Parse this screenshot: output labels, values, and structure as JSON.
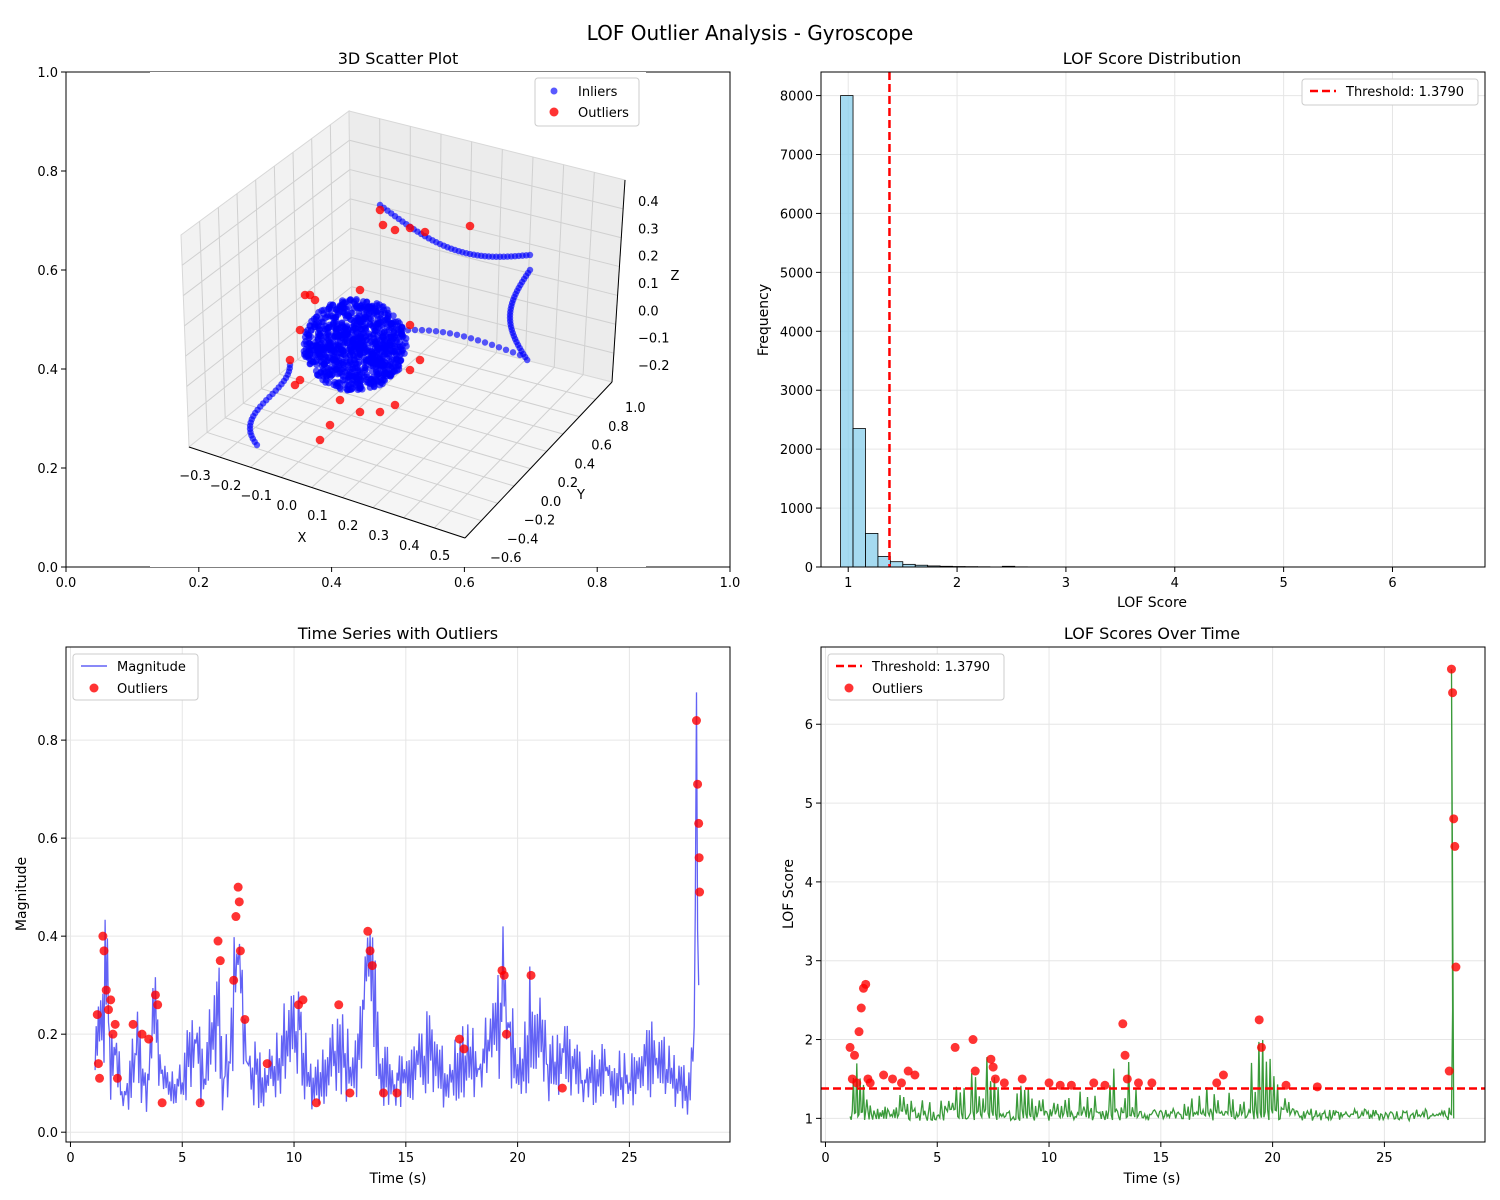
{
  "figure": {
    "suptitle": "LOF Outlier Analysis - Gyroscope"
  },
  "colors": {
    "inlier": "#0000ff",
    "outlier": "#ff0000",
    "threshold": "#ff0000",
    "hist_fill": "#87ceeb",
    "magnitude_line": "#6262f5",
    "lof_line": "#3a9a3a",
    "grid": "#e6e6e6"
  },
  "chart_data": [
    {
      "type": "scatter",
      "title": "3D Scatter Plot",
      "projection": "3d",
      "legend": [
        "Inliers",
        "Outliers"
      ],
      "legend_placement": "top-right",
      "xlabel": "X",
      "ylabel": "Y",
      "zlabel": "Z",
      "x_ticks": [
        "−0.3",
        "−0.2",
        "−0.1",
        "0.0",
        "0.1",
        "0.2",
        "0.3",
        "0.4",
        "0.5"
      ],
      "y_ticks": [
        "−0.6",
        "−0.4",
        "−0.2",
        "0.0",
        "0.2",
        "0.4",
        "0.6",
        "0.8",
        "1.0"
      ],
      "z_ticks": [
        "−0.2",
        "−0.1",
        "0.0",
        "0.1",
        "0.2",
        "0.3",
        "0.4"
      ],
      "frame_ticks_x": [
        "0.0",
        "0.2",
        "0.4",
        "0.6",
        "0.8",
        "1.0"
      ],
      "frame_ticks_y": [
        "0.0",
        "0.2",
        "0.4",
        "0.6",
        "0.8",
        "1.0"
      ],
      "grid": true
    },
    {
      "type": "bar",
      "title": "LOF Score Distribution",
      "xlabel": "LOF Score",
      "ylabel": "Frequency",
      "xlim": [
        0.75,
        6.85
      ],
      "ylim": [
        0,
        8400
      ],
      "x_ticks": [
        1,
        2,
        3,
        4,
        5,
        6
      ],
      "y_ticks": [
        0,
        1000,
        2000,
        3000,
        4000,
        5000,
        6000,
        7000,
        8000
      ],
      "bin_start": 0.93,
      "bin_width": 0.1143,
      "values": [
        8000,
        2350,
        570,
        180,
        90,
        45,
        30,
        18,
        12,
        8,
        6,
        4,
        0,
        12,
        3,
        2,
        1,
        1,
        1,
        0,
        0,
        0,
        0,
        0,
        0,
        0,
        0,
        0,
        0,
        0,
        0,
        0,
        0,
        0,
        0,
        0,
        0,
        0,
        0,
        0,
        0,
        0,
        0,
        0,
        0,
        0,
        0,
        0,
        0,
        1
      ],
      "threshold": 1.379,
      "legend": [
        "Threshold: 1.3790"
      ],
      "legend_placement": "top-right",
      "grid": true
    },
    {
      "type": "line",
      "title": "Time Series with Outliers",
      "xlabel": "Time (s)",
      "ylabel": "Magnitude",
      "xlim": [
        -0.2,
        29.5
      ],
      "ylim": [
        -0.02,
        0.99
      ],
      "x_ticks": [
        0,
        5,
        10,
        15,
        20,
        25
      ],
      "y_ticks": [
        0.0,
        0.2,
        0.4,
        0.6,
        0.8
      ],
      "legend": [
        "Magnitude",
        "Outliers"
      ],
      "legend_placement": "top-left",
      "series": [
        {
          "name": "Magnitude",
          "x": [
            1.1,
            1.3,
            1.5,
            1.6,
            1.8,
            2.0,
            2.3,
            2.6,
            3.0,
            3.4,
            3.8,
            4.0,
            4.5,
            5.0,
            5.5,
            6.0,
            6.6,
            6.8,
            7.2,
            7.5,
            7.8,
            8.2,
            8.8,
            9.5,
            10.2,
            10.8,
            11.5,
            12.0,
            12.8,
            13.4,
            13.8,
            14.5,
            15.2,
            16.0,
            16.8,
            17.6,
            18.4,
            19.4,
            20.0,
            20.6,
            21.4,
            22.0,
            23.0,
            24.0,
            25.0,
            26.0,
            27.0,
            27.6,
            27.9,
            28.0,
            28.1
          ],
          "y": [
            0.15,
            0.3,
            0.2,
            0.54,
            0.15,
            0.22,
            0.08,
            0.12,
            0.2,
            0.1,
            0.28,
            0.15,
            0.1,
            0.12,
            0.25,
            0.1,
            0.38,
            0.12,
            0.2,
            0.5,
            0.18,
            0.15,
            0.12,
            0.2,
            0.26,
            0.1,
            0.15,
            0.2,
            0.14,
            0.45,
            0.15,
            0.12,
            0.15,
            0.2,
            0.12,
            0.18,
            0.15,
            0.34,
            0.12,
            0.28,
            0.15,
            0.2,
            0.12,
            0.15,
            0.12,
            0.18,
            0.14,
            0.1,
            0.2,
            0.94,
            0.3
          ]
        },
        {
          "name": "Outliers",
          "x": [
            1.2,
            1.25,
            1.3,
            1.45,
            1.5,
            1.6,
            1.7,
            1.8,
            1.9,
            2.0,
            2.1,
            2.8,
            3.2,
            3.5,
            3.8,
            3.9,
            4.1,
            5.8,
            6.6,
            6.7,
            7.3,
            7.4,
            7.5,
            7.55,
            7.6,
            7.8,
            8.8,
            10.2,
            10.4,
            11.0,
            12.0,
            12.5,
            13.3,
            13.4,
            13.5,
            14.0,
            14.6,
            17.4,
            17.6,
            19.3,
            19.4,
            19.5,
            20.6,
            22.0,
            28.0,
            28.05,
            28.1,
            28.12,
            28.14
          ],
          "y": [
            0.24,
            0.14,
            0.11,
            0.4,
            0.37,
            0.29,
            0.25,
            0.27,
            0.2,
            0.22,
            0.11,
            0.22,
            0.2,
            0.19,
            0.28,
            0.26,
            0.06,
            0.06,
            0.39,
            0.35,
            0.31,
            0.44,
            0.5,
            0.47,
            0.37,
            0.23,
            0.14,
            0.26,
            0.27,
            0.06,
            0.26,
            0.08,
            0.41,
            0.37,
            0.34,
            0.08,
            0.08,
            0.19,
            0.17,
            0.33,
            0.32,
            0.2,
            0.32,
            0.09,
            0.84,
            0.71,
            0.63,
            0.56,
            0.49
          ]
        }
      ],
      "grid": true
    },
    {
      "type": "line",
      "title": "LOF Scores Over Time",
      "xlabel": "Time (s)",
      "ylabel": "LOF Score",
      "xlim": [
        -0.2,
        29.5
      ],
      "ylim": [
        0.7,
        6.98
      ],
      "x_ticks": [
        0,
        5,
        10,
        15,
        20,
        25
      ],
      "y_ticks": [
        1,
        2,
        3,
        4,
        5,
        6
      ],
      "threshold": 1.379,
      "legend": [
        "Threshold: 1.3790",
        "Outliers"
      ],
      "legend_placement": "top-left",
      "series": [
        {
          "name": "LOF",
          "x": [
            1.1,
            1.3,
            1.5,
            1.7,
            1.8,
            2.0,
            2.5,
            3.0,
            3.5,
            4.0,
            5.0,
            5.8,
            6.6,
            7.5,
            8.0,
            8.8,
            10.0,
            11.0,
            12.0,
            13.4,
            14.0,
            15.0,
            16.0,
            17.5,
            18.5,
            19.5,
            20.5,
            21.5,
            22.0,
            23.0,
            24.0,
            25.0,
            26.0,
            27.0,
            27.8,
            28.0,
            28.1
          ],
          "y": [
            1.05,
            2.0,
            1.5,
            2.6,
            2.7,
            1.2,
            1.1,
            1.3,
            1.4,
            1.5,
            1.1,
            1.9,
            2.0,
            1.8,
            1.2,
            1.5,
            1.2,
            1.3,
            1.4,
            2.2,
            1.2,
            1.1,
            1.2,
            1.5,
            1.2,
            2.25,
            1.3,
            1.1,
            1.2,
            1.1,
            1.1,
            1.1,
            1.1,
            1.1,
            1.1,
            6.7,
            1.0
          ]
        },
        {
          "name": "Outliers",
          "x": [
            1.1,
            1.2,
            1.3,
            1.4,
            1.5,
            1.6,
            1.7,
            1.8,
            1.9,
            2.0,
            2.6,
            3.0,
            3.4,
            3.7,
            4.0,
            5.8,
            6.6,
            6.7,
            7.4,
            7.5,
            7.6,
            8.0,
            8.8,
            10.0,
            10.5,
            11.0,
            12.0,
            12.5,
            13.3,
            13.4,
            13.5,
            14.0,
            14.6,
            17.5,
            17.8,
            19.4,
            19.5,
            20.6,
            22.0,
            27.9,
            28.0,
            28.05,
            28.1,
            28.15,
            28.2
          ],
          "y": [
            1.9,
            1.5,
            1.8,
            1.45,
            2.1,
            2.4,
            2.65,
            2.7,
            1.5,
            1.45,
            1.55,
            1.5,
            1.45,
            1.6,
            1.55,
            1.9,
            2.0,
            1.6,
            1.75,
            1.65,
            1.5,
            1.45,
            1.5,
            1.45,
            1.42,
            1.42,
            1.45,
            1.42,
            2.2,
            1.8,
            1.5,
            1.45,
            1.45,
            1.45,
            1.55,
            2.25,
            1.9,
            1.42,
            1.4,
            1.6,
            6.7,
            6.4,
            4.8,
            4.45,
            2.92
          ]
        }
      ],
      "grid": true
    }
  ]
}
